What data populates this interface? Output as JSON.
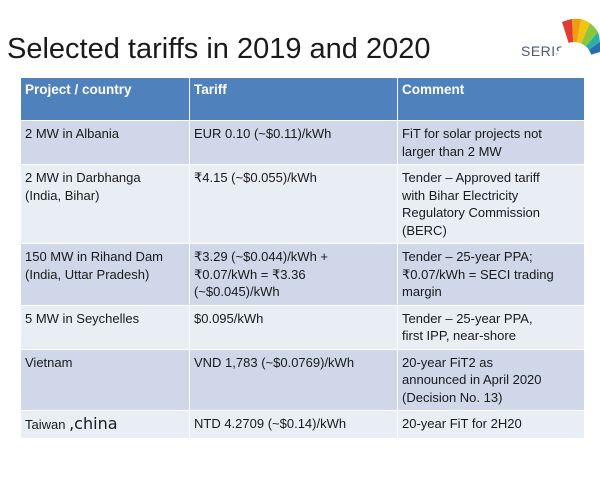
{
  "slide": {
    "title": "Selected tariffs in 2019 and 2020",
    "logo_text": "SERIS"
  },
  "table": {
    "headers": [
      "Project / country",
      "Tariff",
      "Comment"
    ],
    "rows": [
      {
        "project": [
          "2 MW in Albania"
        ],
        "tariff": [
          "EUR 0.10 (~$0.11)/kWh"
        ],
        "comment": [
          "FiT for solar projects not",
          "larger than 2 MW"
        ]
      },
      {
        "project": [
          "2 MW in Darbhanga",
          "(India, Bihar)"
        ],
        "tariff": [
          "₹4.15 (~$0.055)/kWh"
        ],
        "comment": [
          "Tender – Approved tariff",
          "with Bihar Electricity",
          "Regulatory Commission",
          "(BERC)"
        ]
      },
      {
        "project": [
          "150 MW in Rihand Dam",
          "(India, Uttar Pradesh)"
        ],
        "tariff": [
          "₹3.29 (~$0.044)/kWh +",
          "₹0.07/kWh = ₹3.36",
          "(~$0.045)/kWh"
        ],
        "comment": [
          "Tender – 25-year PPA;",
          "₹0.07/kWh = SECI trading",
          "margin"
        ]
      },
      {
        "project": [
          "5 MW in Seychelles"
        ],
        "tariff": [
          "$0.095/kWh"
        ],
        "comment": [
          "Tender – 25-year PPA,",
          "first IPP, near-shore"
        ]
      },
      {
        "project": [
          "Vietnam"
        ],
        "tariff": [
          "VND 1,783 (~$0.0769)/kWh"
        ],
        "comment": [
          "20-year FiT2 as",
          "announced in April 2020",
          "(Decision No. 13)"
        ]
      },
      {
        "project_prefix": "Taiwan",
        "project_suffix": ",china",
        "tariff": [
          "NTD 4.2709 (~$0.14)/kWh"
        ],
        "comment": [
          "20-year FiT for 2H20"
        ]
      }
    ]
  },
  "colors": {
    "header_bg": "#4f81bd",
    "row_dark": "#cfd7e8",
    "row_light": "#e9edf4"
  }
}
